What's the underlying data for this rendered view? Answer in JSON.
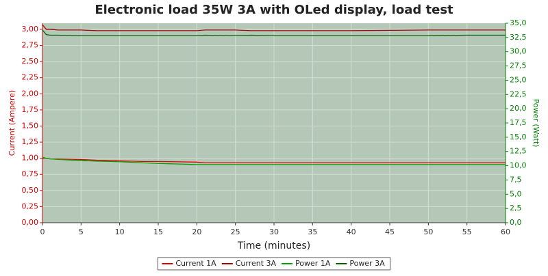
{
  "chart_data": {
    "type": "line",
    "title": "Electronic load 35W 3A with OLed display, load test",
    "x_label": "Time (minutes)",
    "y_label": "Current (Ampere)",
    "y2_label": "Power (Watt)",
    "x": [
      0,
      0.5,
      1,
      2,
      5,
      7,
      10,
      13,
      15,
      20,
      21,
      25,
      27,
      30,
      40,
      50,
      55,
      60
    ],
    "series": [
      {
        "name": "Current 1A",
        "color": "#e00000",
        "values": [
          1.0,
          1.0,
          0.99,
          0.99,
          0.98,
          0.97,
          0.96,
          0.95,
          0.95,
          0.94,
          0.93,
          0.93,
          0.93,
          0.93,
          0.93,
          0.93,
          0.93,
          0.93
        ]
      },
      {
        "name": "Current 3A",
        "color": "#a00000",
        "values": [
          3.07,
          3.0,
          3.0,
          2.99,
          2.99,
          2.98,
          2.98,
          2.98,
          2.98,
          2.98,
          2.99,
          2.99,
          2.98,
          2.98,
          2.98,
          2.99,
          2.99,
          2.99
        ]
      },
      {
        "name": "Power 1A",
        "color": "#00a000",
        "axis": "y2",
        "values": [
          11.5,
          11.3,
          11.2,
          11.1,
          10.9,
          10.8,
          10.7,
          10.5,
          10.4,
          10.2,
          10.2,
          10.2,
          10.2,
          10.2,
          10.2,
          10.2,
          10.2,
          10.2
        ]
      },
      {
        "name": "Power 3A",
        "color": "#006000",
        "axis": "y2",
        "values": [
          33.8,
          33.0,
          32.9,
          32.9,
          32.8,
          32.8,
          32.8,
          32.8,
          32.8,
          32.8,
          32.9,
          32.8,
          32.9,
          32.8,
          32.8,
          32.8,
          32.9,
          32.9
        ]
      }
    ],
    "xlim": [
      0,
      60
    ],
    "xticks": [
      0,
      5,
      10,
      15,
      20,
      25,
      30,
      35,
      40,
      45,
      50,
      55,
      60
    ],
    "ylim": [
      0,
      3.095
    ],
    "yticks": [
      {
        "value": 0,
        "label": "0,00"
      },
      {
        "value": 0.25,
        "label": "0,25"
      },
      {
        "value": 0.5,
        "label": "0,50"
      },
      {
        "value": 0.75,
        "label": "0,75"
      },
      {
        "value": 1,
        "label": "1,00"
      },
      {
        "value": 1.25,
        "label": "1,25"
      },
      {
        "value": 1.5,
        "label": "1,50"
      },
      {
        "value": 1.75,
        "label": "1,75"
      },
      {
        "value": 2,
        "label": "2,00"
      },
      {
        "value": 2.25,
        "label": "2,25"
      },
      {
        "value": 2.5,
        "label": "2,50"
      },
      {
        "value": 2.75,
        "label": "2,75"
      },
      {
        "value": 3,
        "label": "3,00"
      }
    ],
    "y2lim": [
      0,
      35
    ],
    "y2ticks": [
      {
        "value": 0,
        "label": "0,0"
      },
      {
        "value": 2.5,
        "label": "2,5"
      },
      {
        "value": 5,
        "label": "5,0"
      },
      {
        "value": 7.5,
        "label": "7,5"
      },
      {
        "value": 10,
        "label": "10,0"
      },
      {
        "value": 12.5,
        "label": "12,5"
      },
      {
        "value": 15,
        "label": "15,0"
      },
      {
        "value": 17.5,
        "label": "17,5"
      },
      {
        "value": 20,
        "label": "20,0"
      },
      {
        "value": 22.5,
        "label": "22,5"
      },
      {
        "value": 25,
        "label": "25,0"
      },
      {
        "value": 27.5,
        "label": "27,5"
      },
      {
        "value": 30,
        "label": "30,0"
      },
      {
        "value": 32.5,
        "label": "32,5"
      },
      {
        "value": 35,
        "label": "35,0"
      }
    ],
    "grid": true
  }
}
